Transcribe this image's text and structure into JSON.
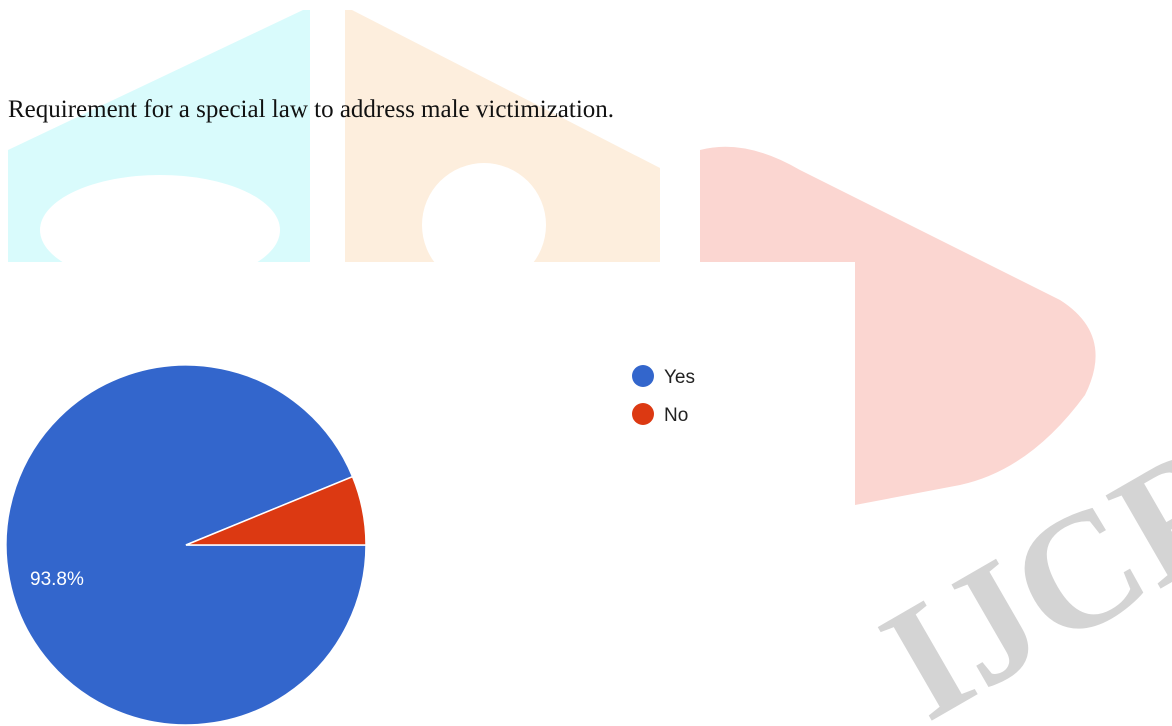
{
  "caption": "Requirement for a special law to address male victimization.",
  "watermark": {
    "text": "IJCRT",
    "colors": {
      "cyan": "#d9fbfc",
      "orange": "#fdeedd",
      "red": "#fbd6d1",
      "gray": "#d4d4d4"
    }
  },
  "chart_data": {
    "type": "pie",
    "categories": [
      "Yes",
      "No"
    ],
    "values": [
      93.8,
      6.2
    ],
    "colors": [
      "#3366cc",
      "#dc3912"
    ],
    "data_labels": [
      "93.8%",
      ""
    ],
    "legend": {
      "placement": "right",
      "entries": [
        "Yes",
        "No"
      ]
    }
  }
}
